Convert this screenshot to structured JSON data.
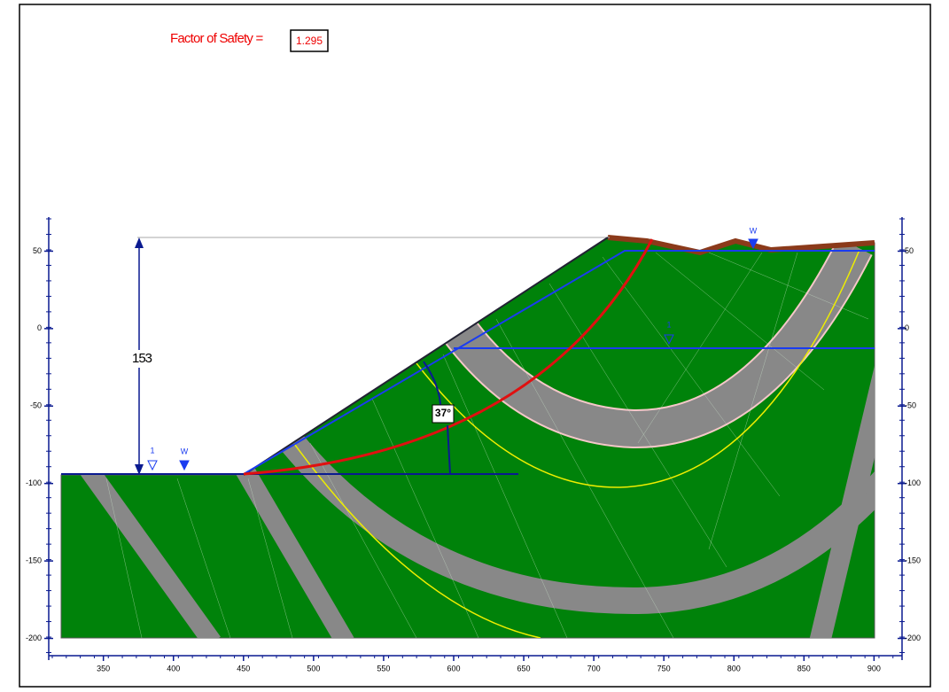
{
  "header": {
    "label": "Factor of Safety =",
    "value": "1.295"
  },
  "annotations": {
    "height": "153",
    "angle": "37°",
    "water_labels": [
      "1",
      "W",
      "1",
      "W"
    ]
  },
  "x_axis": {
    "lim": [
      311,
      920
    ],
    "ticks": [
      350,
      400,
      450,
      500,
      550,
      600,
      650,
      700,
      750,
      800,
      850,
      900
    ]
  },
  "y_axis": {
    "lim": [
      -214,
      72
    ],
    "ticks": [
      50,
      0,
      -50,
      -100,
      -150,
      -200
    ]
  }
}
